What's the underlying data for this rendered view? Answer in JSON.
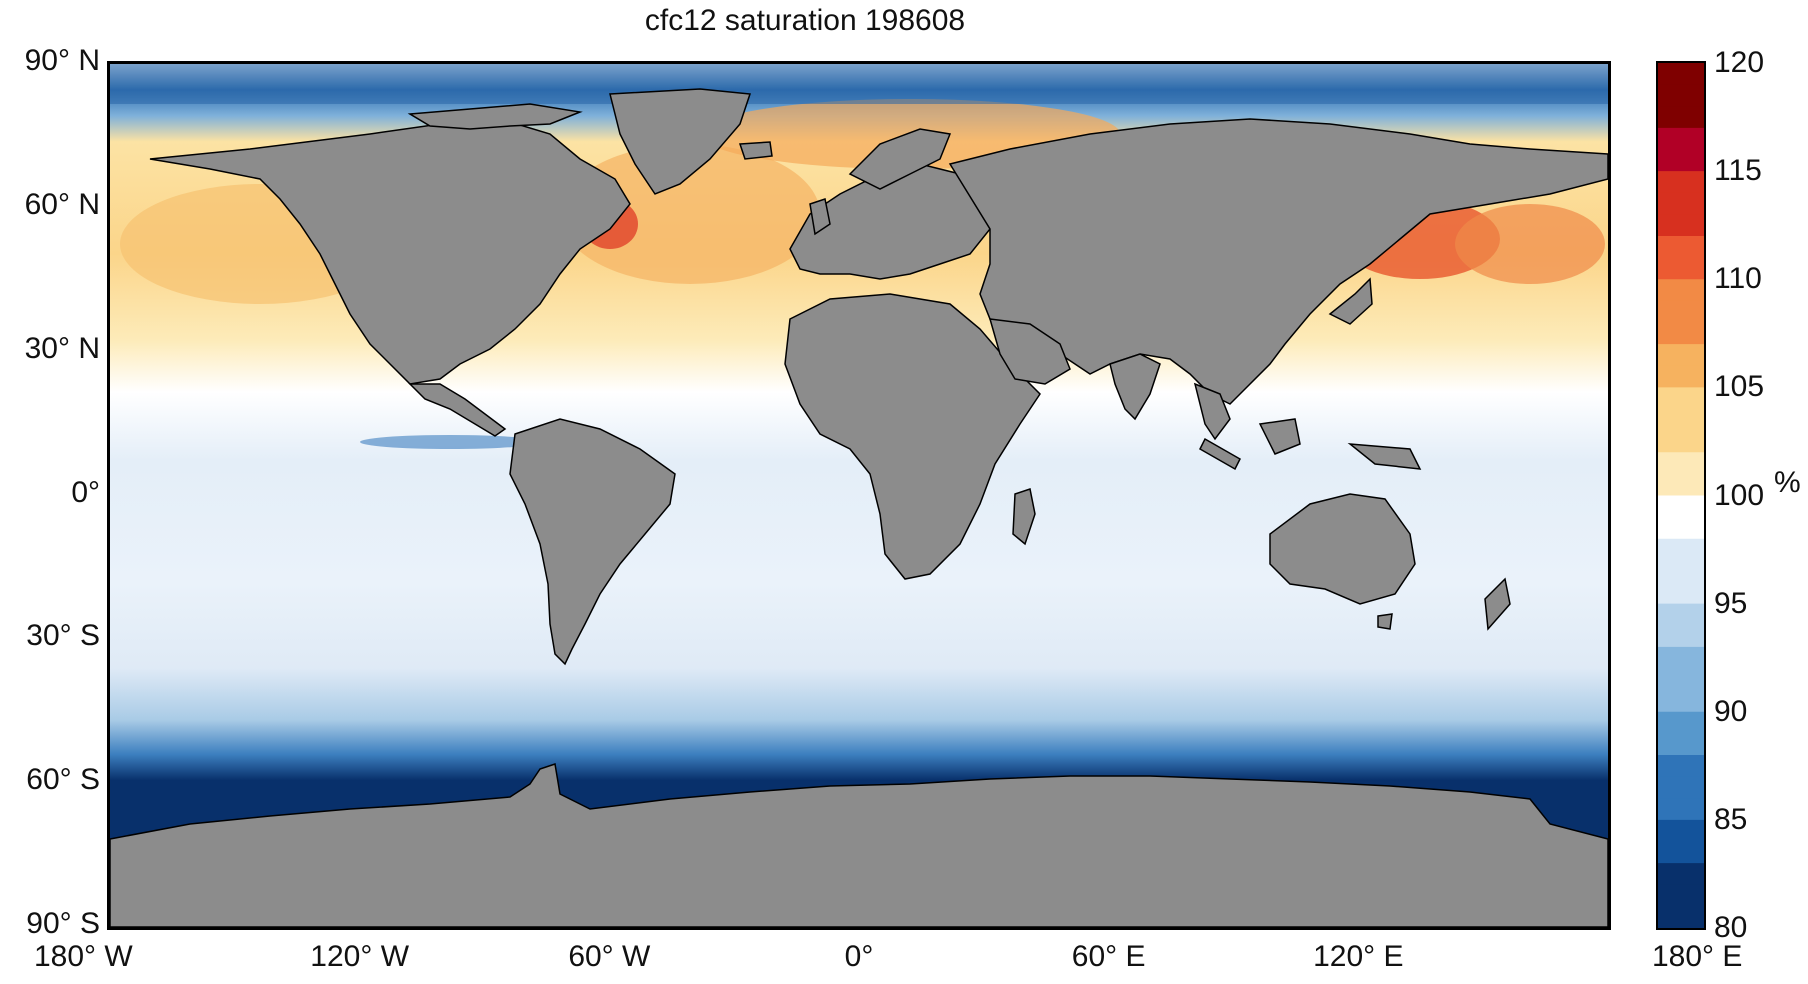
{
  "title": "cfc12 saturation 198608",
  "lat_labels": [
    {
      "text": "90° N",
      "lat": 90
    },
    {
      "text": "60° N",
      "lat": 60
    },
    {
      "text": "30° N",
      "lat": 30
    },
    {
      "text": "0°",
      "lat": 0
    },
    {
      "text": "30° S",
      "lat": -30
    },
    {
      "text": "60° S",
      "lat": -60
    },
    {
      "text": "90° S",
      "lat": -90
    }
  ],
  "lon_labels": [
    {
      "text": "180° W",
      "lon": -180
    },
    {
      "text": "120° W",
      "lon": -120
    },
    {
      "text": "60° W",
      "lon": -60
    },
    {
      "text": "0°",
      "lon": 0
    },
    {
      "text": "60° E",
      "lon": 60
    },
    {
      "text": "120° E",
      "lon": 120
    },
    {
      "text": "180° E",
      "lon": 180
    }
  ],
  "colorbar": {
    "min": 80,
    "max": 120,
    "ticks": [
      "120",
      "115",
      "110",
      "105",
      "100",
      "95",
      "90",
      "85",
      "80"
    ],
    "unit": "%"
  },
  "colors": {
    "land": "#8c8c8c",
    "coast": "#000000",
    "deep_blue": "#08306b",
    "mid_blue": "#4a90c8",
    "light_blue": "#dbe9f6",
    "white": "#ffffff",
    "light_yellow": "#fbe6a6",
    "orange": "#f29a45",
    "red": "#d7301f",
    "dark_red": "#7f0000"
  }
}
